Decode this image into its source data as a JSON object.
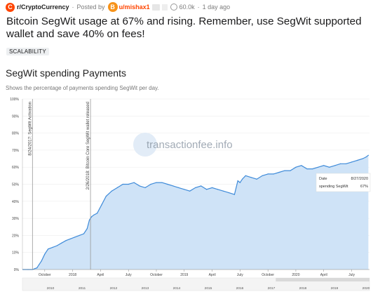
{
  "post": {
    "subreddit": "r/CryptoCurrency",
    "subreddit_icon": "C",
    "posted_by_label": "Posted by",
    "user_avatar": "B",
    "username": "u/mishax1",
    "karma": "60.0k",
    "time": "1 day ago",
    "title": "Bitcoin SegWit usage at 67% and rising. Remember, use SegWit supported wallet and save 40% on fees!",
    "flair": "SCALABILITY"
  },
  "chart_data": {
    "type": "area",
    "title": "SegWit spending Payments",
    "subtitle": "Shows the percentage of payments spending SegWit per day.",
    "y_ticks": [
      "0%",
      "10%",
      "20%",
      "30%",
      "40%",
      "50%",
      "60%",
      "70%",
      "80%",
      "90%",
      "100%"
    ],
    "ylim": [
      0,
      100
    ],
    "x_month_ticks": [
      {
        "label": "October",
        "date": 2017.75
      },
      {
        "label": "2018",
        "date": 2018.0
      },
      {
        "label": "April",
        "date": 2018.25
      },
      {
        "label": "July",
        "date": 2018.5
      },
      {
        "label": "October",
        "date": 2018.75
      },
      {
        "label": "2019",
        "date": 2019.0
      },
      {
        "label": "April",
        "date": 2019.25
      },
      {
        "label": "July",
        "date": 2019.5
      },
      {
        "label": "October",
        "date": 2019.75
      },
      {
        "label": "2020",
        "date": 2020.0
      },
      {
        "label": "April",
        "date": 2020.25
      },
      {
        "label": "July",
        "date": 2020.5
      }
    ],
    "x_year_ticks": [
      "2010",
      "2011",
      "2012",
      "2013",
      "2014",
      "2015",
      "2016",
      "2017",
      "2018",
      "2019",
      "2020"
    ],
    "annotations": [
      {
        "text": "8/24/2017: SegWit Activation",
        "date": 2017.64
      },
      {
        "text": "2/26/2018: Bitcoin Core SegWit wallet released",
        "date": 2018.16
      }
    ],
    "watermark": "transactionfee.info",
    "tooltip": {
      "date_label": "Date",
      "date": "8/27/2020",
      "series_label": "spending SegWit",
      "value": "67%"
    },
    "series": [
      {
        "x": [
          2017.6,
          2017.64,
          2017.66,
          2017.68,
          2017.7,
          2017.72,
          2017.75,
          2017.78,
          2017.82,
          2017.86,
          2017.9,
          2017.94,
          2017.98,
          2018.02,
          2018.06,
          2018.1,
          2018.13,
          2018.15,
          2018.17,
          2018.19,
          2018.22,
          2018.26,
          2018.3,
          2018.35,
          2018.4,
          2018.45,
          2018.5,
          2018.55,
          2018.6,
          2018.65,
          2018.7,
          2018.75,
          2018.8,
          2018.85,
          2018.9,
          2018.95,
          2019.0,
          2019.05,
          2019.1,
          2019.15,
          2019.2,
          2019.25,
          2019.3,
          2019.35,
          2019.4,
          2019.45,
          2019.48,
          2019.5,
          2019.52,
          2019.55,
          2019.6,
          2019.65,
          2019.7,
          2019.75,
          2019.8,
          2019.85,
          2019.9,
          2019.95,
          2020.0,
          2020.05,
          2020.1,
          2020.15,
          2020.2,
          2020.25,
          2020.3,
          2020.35,
          2020.4,
          2020.45,
          2020.5,
          2020.55,
          2020.6,
          2020.63,
          2020.65
        ],
        "y": [
          0,
          0,
          0.5,
          1,
          3,
          5,
          9,
          12,
          13,
          14,
          15.5,
          17,
          18,
          19,
          20,
          21,
          24,
          29,
          31,
          32,
          33,
          38,
          43,
          46,
          48,
          50,
          50,
          51,
          49,
          48,
          50,
          51,
          51,
          50,
          49,
          48,
          47,
          46,
          48,
          49,
          47,
          48,
          47,
          46,
          45,
          44,
          52,
          51,
          53,
          55,
          54,
          53,
          55,
          56,
          56,
          57,
          58,
          58,
          60,
          61,
          59,
          59,
          60,
          61,
          60,
          61,
          62,
          62,
          63,
          64,
          65,
          66,
          67
        ]
      }
    ],
    "colors": {
      "line": "#3f8bd9",
      "fill": "#cfe3f7",
      "axis": "#555555",
      "annotation": "#999999",
      "grid": "#eaeaea",
      "brand": "#ff4500"
    }
  }
}
